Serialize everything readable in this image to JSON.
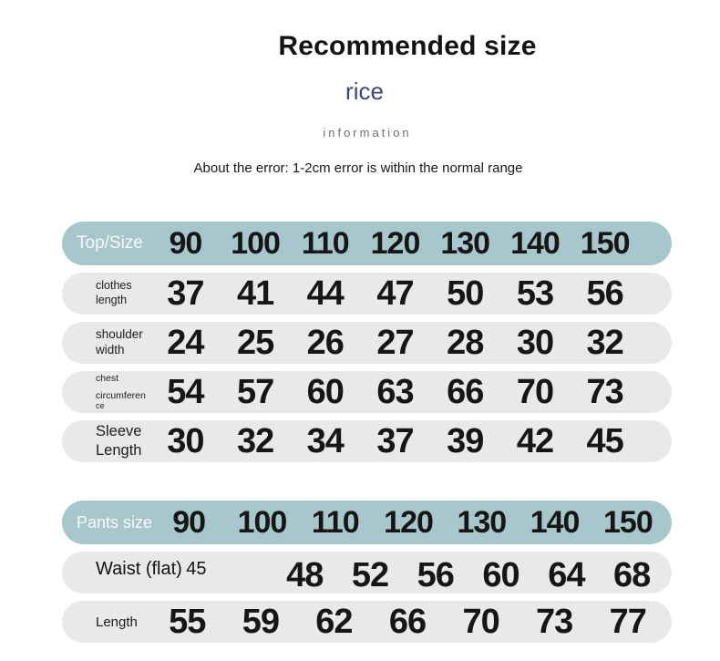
{
  "header": {
    "title": "Recommended size",
    "subtitle": "rice",
    "subtitle2": "information",
    "note": "About the error: 1-2cm error is within the normal range"
  },
  "colors": {
    "header_pill": "#a8c7cd",
    "row_pill": "#e9e9e9",
    "subtitle": "#3d4a6d",
    "subtitle2": "#6f6f6f",
    "text": "#141414"
  },
  "top_table": {
    "header_label": "Top/Size",
    "sizes": [
      "90",
      "100",
      "110",
      "120",
      "130",
      "140",
      "150"
    ],
    "rows": [
      {
        "label_lines": [
          "clothes",
          "length"
        ],
        "values": [
          "37",
          "41",
          "44",
          "47",
          "50",
          "53",
          "56"
        ]
      },
      {
        "label_lines": [
          "shoulder",
          "width"
        ],
        "values": [
          "24",
          "25",
          "26",
          "27",
          "28",
          "30",
          "32"
        ]
      },
      {
        "label_lines": [
          "chest",
          "circumferen",
          "ce"
        ],
        "values": [
          "54",
          "57",
          "60",
          "63",
          "66",
          "70",
          "73"
        ]
      },
      {
        "label_lines": [
          "Sleeve",
          "Length"
        ],
        "values": [
          "30",
          "32",
          "34",
          "37",
          "39",
          "42",
          "45"
        ]
      }
    ]
  },
  "pants_table": {
    "header_label": "Pants size",
    "sizes": [
      "90",
      "100",
      "110",
      "120",
      "130",
      "140",
      "150"
    ],
    "rows": [
      {
        "label": "Waist (flat)",
        "first_value": "45",
        "values": [
          "48",
          "52",
          "56",
          "60",
          "64",
          "68"
        ]
      },
      {
        "label": "Length",
        "values": [
          "55",
          "59",
          "62",
          "66",
          "70",
          "73",
          "77"
        ]
      }
    ]
  }
}
